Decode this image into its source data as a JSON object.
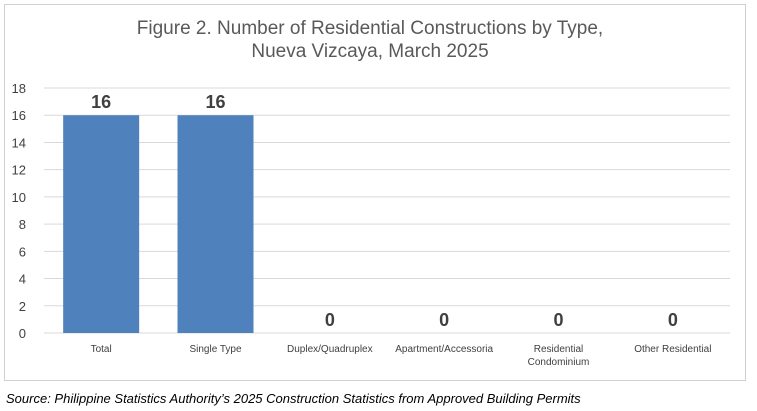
{
  "chart_data": {
    "type": "bar",
    "title_lines": [
      "Figure 2. Number of Residential Constructions by Type,",
      "Nueva Vizcaya, March 2025"
    ],
    "categories": [
      [
        "Total"
      ],
      [
        "Single Type"
      ],
      [
        "Duplex/Quadruplex"
      ],
      [
        "Apartment/Accessoria"
      ],
      [
        "Residential",
        "Condominium"
      ],
      [
        "Other Residential"
      ]
    ],
    "values": [
      16,
      16,
      0,
      0,
      0,
      0
    ],
    "ylim": [
      0,
      18
    ],
    "yticks": [
      0,
      2,
      4,
      6,
      8,
      10,
      12,
      14,
      16,
      18
    ],
    "grid": true,
    "bar_color": "#4f81bd",
    "grid_color": "#d9d9d9"
  },
  "source": "Source: Philippine Statistics Authority’s 2025 Construction Statistics from Approved Building Permits"
}
